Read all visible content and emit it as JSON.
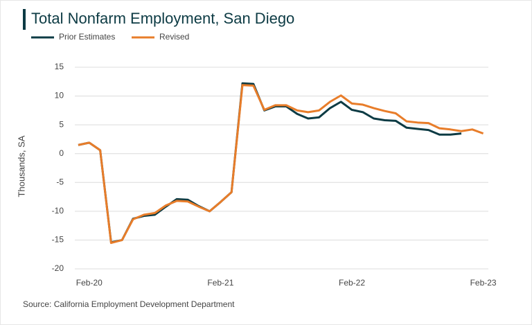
{
  "chart_data": {
    "type": "line",
    "title": "Total Nonfarm Employment, San Diego",
    "y_label": "Thousands, SA",
    "source": "Source: California Employment Development Department",
    "categories": [
      null,
      "Feb-20",
      null,
      null,
      null,
      null,
      null,
      null,
      null,
      null,
      null,
      null,
      null,
      "Feb-21",
      null,
      null,
      null,
      null,
      null,
      null,
      null,
      null,
      null,
      null,
      null,
      "Feb-22",
      null,
      null,
      null,
      null,
      null,
      null,
      null,
      null,
      null,
      null,
      null,
      "Feb-23"
    ],
    "series": [
      {
        "name": "Prior Estimates",
        "color": "#0d3b44",
        "values": [
          1.5,
          1.9,
          0.6,
          -15.4,
          -15.0,
          -11.3,
          -10.8,
          -10.6,
          -9.2,
          -7.9,
          -8.0,
          -9.1,
          -10.0,
          -8.4,
          -6.7,
          12.2,
          12.1,
          7.5,
          8.2,
          8.2,
          6.9,
          6.1,
          6.3,
          7.9,
          9.0,
          7.6,
          7.2,
          6.1,
          5.8,
          5.7,
          4.5,
          4.3,
          4.1,
          3.3,
          3.3,
          3.5,
          null,
          null
        ]
      },
      {
        "name": "Revised",
        "color": "#e87d2a",
        "values": [
          1.5,
          1.9,
          0.6,
          -15.5,
          -15.0,
          -11.4,
          -10.6,
          -10.3,
          -9.0,
          -8.2,
          -8.3,
          -9.2,
          -10.0,
          -8.4,
          -6.7,
          11.9,
          11.8,
          7.6,
          8.4,
          8.4,
          7.5,
          7.2,
          7.5,
          9.0,
          10.1,
          8.7,
          8.5,
          7.9,
          7.4,
          7.0,
          5.6,
          5.4,
          5.3,
          4.4,
          4.2,
          3.9,
          4.2,
          3.5
        ]
      }
    ],
    "ylim": [
      -20,
      15
    ],
    "yticks": [
      -20,
      -15,
      -10,
      -5,
      0,
      5,
      10,
      15
    ],
    "grid": true,
    "legend": "top-left"
  }
}
